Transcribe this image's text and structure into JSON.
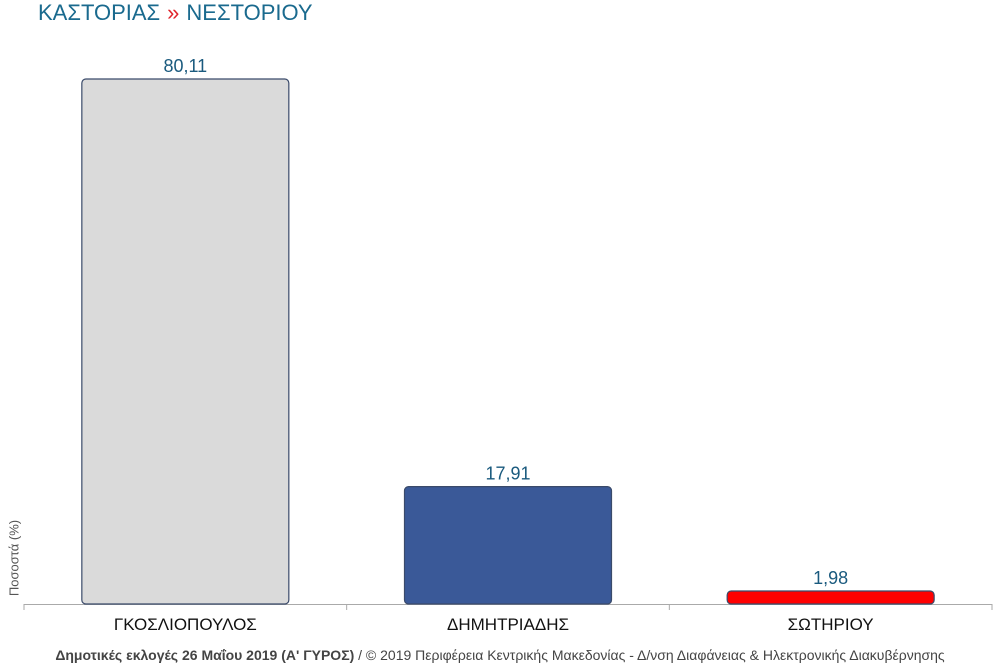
{
  "header": {
    "region": "ΚΑΣΤΟΡΙΑΣ",
    "separator": "»",
    "area": "ΝΕΣΤΟΡΙΟΥ"
  },
  "footer": {
    "election": "Δημοτικές εκλογές 26 Μαΐου 2019 (Α' ΓΥΡΟΣ)",
    "credit": " / © 2019 Περιφέρεια Κεντρικής Μακεδονίας - Δ/νση Διαφάνειας & Ηλεκτρονικής Διακυβέρνησης"
  },
  "chart_data": {
    "type": "bar",
    "title": "ΚΑΣΤΟΡΙΑΣ » ΝΕΣΤΟΡΙΟΥ",
    "xlabel": "",
    "ylabel": "Ποσοστά (%)",
    "ylim": [
      0,
      80.11
    ],
    "grid": false,
    "categories": [
      "ΓΚΟΣΛΙΟΠΟΥΛΟΣ",
      "ΔΗΜΗΤΡΙΑΔΗΣ",
      "ΣΩΤΗΡΙΟΥ"
    ],
    "values": [
      80.11,
      17.91,
      1.98
    ],
    "value_labels": [
      "80,11",
      "17,91",
      "1,98"
    ],
    "colors": [
      "#dadada",
      "#3a5998",
      "#ff0000"
    ],
    "label_color": "#1a5a7e",
    "border_color": "#3a4a6a"
  }
}
